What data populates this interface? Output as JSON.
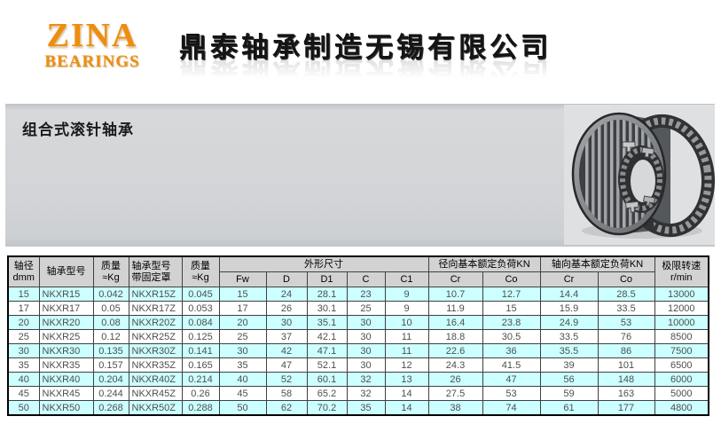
{
  "header": {
    "logo_line1": "ZINA",
    "logo_line2": "BEARINGS",
    "company_title": "鼎泰轴承制造无锡有限公司"
  },
  "section": {
    "title": "组合式滚针轴承"
  },
  "colors": {
    "logo_orange": "#EE8D0F",
    "row_highlight_cyan": "#CCFFFF",
    "header_gray": "#D2D2D2",
    "banner_gray": "#D2D4D7"
  },
  "icons": {
    "bearing_photo": "needle-roller-bearing-photo"
  },
  "table": {
    "headers": {
      "shaft_l1": "轴径",
      "shaft_l2": "dmm",
      "model": "轴承型号",
      "mass_l1": "质量",
      "mass_l2": "≈Kg",
      "model_z_l1": "轴承型号",
      "model_z_l2": "带固定罩",
      "dims": "外形尺寸",
      "radial": "径向基本额定负荷KN",
      "axial": "轴向基本额定负荷KN",
      "speed_l1": "极限转速",
      "speed_l2": "r/min"
    },
    "sub_headers": [
      "Fw",
      "D",
      "D1",
      "C",
      "C1",
      "Cr",
      "Co",
      "Cr",
      "Co"
    ],
    "rows": [
      [
        "15",
        "NKXR15",
        "0.042",
        "NKXR15Z",
        "0.045",
        "15",
        "24",
        "28.1",
        "23",
        "9",
        "10.7",
        "12.7",
        "14.4",
        "28.5",
        "13000"
      ],
      [
        "17",
        "NKXR17",
        "0.05",
        "NKXR17Z",
        "0.053",
        "17",
        "26",
        "30.1",
        "25",
        "9",
        "11.9",
        "15",
        "15.9",
        "33.5",
        "12000"
      ],
      [
        "20",
        "NKXR20",
        "0.08",
        "NKXR20Z",
        "0.084",
        "20",
        "30",
        "35.1",
        "30",
        "10",
        "16.4",
        "23.8",
        "24.9",
        "53",
        "10000"
      ],
      [
        "25",
        "NKXR25",
        "0.12",
        "NKXR25Z",
        "0.125",
        "25",
        "37",
        "42.1",
        "30",
        "11",
        "18.8",
        "30.5",
        "33.5",
        "76",
        "8500"
      ],
      [
        "30",
        "NKXR30",
        "0.135",
        "NKXR30Z",
        "0.141",
        "30",
        "42",
        "47.1",
        "30",
        "11",
        "22.6",
        "36",
        "35.5",
        "86",
        "7500"
      ],
      [
        "35",
        "NKXR35",
        "0.157",
        "NKXR35Z",
        "0.165",
        "35",
        "47",
        "52.1",
        "30",
        "12",
        "24.3",
        "41.5",
        "39",
        "101",
        "6500"
      ],
      [
        "40",
        "NKXR40",
        "0.204",
        "NKXR40Z",
        "0.214",
        "40",
        "52",
        "60.1",
        "32",
        "13",
        "26",
        "47",
        "56",
        "148",
        "6000"
      ],
      [
        "45",
        "NKXR45",
        "0.244",
        "NKXR45Z",
        "0.26",
        "45",
        "58",
        "65.2",
        "32",
        "14",
        "27.5",
        "53",
        "59",
        "163",
        "5000"
      ],
      [
        "50",
        "NKXR50",
        "0.268",
        "NKXR50Z",
        "0.288",
        "50",
        "62",
        "70.2",
        "35",
        "14",
        "38",
        "74",
        "61",
        "177",
        "4800"
      ]
    ]
  }
}
